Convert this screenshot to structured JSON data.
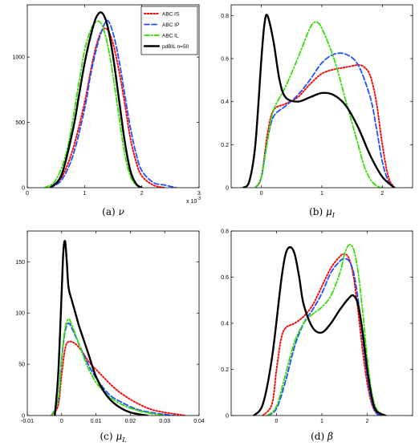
{
  "chart_data": [
    {
      "type": "line",
      "caption": "(a) ν",
      "exponent_label": "x 10",
      "exponent_power": "-3",
      "xlim": [
        0,
        3
      ],
      "ylim": [
        0,
        1400
      ],
      "x_ticks": [
        "0",
        "1",
        "2",
        "3"
      ],
      "y_ticks": [
        "0",
        "500",
        "1000"
      ],
      "legend_position": "top-right",
      "legend": [
        "ABC IS",
        "ABC IP",
        "ABC IL",
        "pdBIL n=50"
      ],
      "series": [
        {
          "name": "ABC IS",
          "color": "#ff0000",
          "style": "dotted",
          "x": [
            0.4,
            0.6,
            0.8,
            1.0,
            1.1,
            1.2,
            1.3,
            1.4,
            1.5,
            1.6,
            1.7,
            1.8,
            1.9,
            2.0,
            2.2,
            2.4
          ],
          "y": [
            0,
            80,
            300,
            650,
            880,
            1080,
            1200,
            1210,
            1100,
            900,
            650,
            380,
            200,
            90,
            20,
            0
          ]
        },
        {
          "name": "ABC IP",
          "color": "#1f4fff",
          "style": "dashed",
          "x": [
            0.4,
            0.6,
            0.8,
            1.0,
            1.1,
            1.2,
            1.3,
            1.4,
            1.5,
            1.6,
            1.7,
            1.8,
            1.9,
            2.0,
            2.2,
            2.4,
            2.6
          ],
          "y": [
            0,
            60,
            250,
            600,
            850,
            1050,
            1200,
            1280,
            1180,
            980,
            720,
            460,
            260,
            130,
            40,
            20,
            0
          ]
        },
        {
          "name": "ABC IL",
          "color": "#33dd00",
          "style": "dashdot",
          "x": [
            0.3,
            0.5,
            0.7,
            0.9,
            1.0,
            1.1,
            1.2,
            1.3,
            1.4,
            1.5,
            1.6,
            1.7,
            1.8,
            1.9,
            2.0
          ],
          "y": [
            0,
            60,
            300,
            800,
            1050,
            1200,
            1270,
            1250,
            1100,
            850,
            550,
            260,
            90,
            20,
            0
          ]
        },
        {
          "name": "pdBIL n=50",
          "color": "#000000",
          "style": "solid",
          "x": [
            0.4,
            0.6,
            0.8,
            0.9,
            1.0,
            1.1,
            1.2,
            1.3,
            1.4,
            1.5,
            1.6,
            1.7,
            1.8,
            1.9,
            2.0
          ],
          "y": [
            0,
            100,
            450,
            700,
            950,
            1150,
            1300,
            1340,
            1240,
            1000,
            680,
            360,
            130,
            30,
            0
          ]
        }
      ]
    },
    {
      "type": "line",
      "caption": "(b) μ_I",
      "xlim": [
        -0.5,
        2.5
      ],
      "ylim": [
        0,
        0.85
      ],
      "x_ticks": [
        "0",
        "1",
        "2"
      ],
      "y_ticks": [
        "0",
        "0.2",
        "0.4",
        "0.6",
        "0.8"
      ],
      "series": [
        {
          "name": "ABC IS",
          "color": "#ff0000",
          "style": "dotted",
          "x": [
            -0.1,
            0.0,
            0.1,
            0.2,
            0.4,
            0.6,
            0.8,
            1.0,
            1.2,
            1.4,
            1.6,
            1.7,
            1.8,
            1.9,
            2.0,
            2.1,
            2.2
          ],
          "y": [
            0,
            0.05,
            0.25,
            0.36,
            0.39,
            0.42,
            0.48,
            0.53,
            0.55,
            0.56,
            0.57,
            0.56,
            0.52,
            0.4,
            0.2,
            0.05,
            0
          ]
        },
        {
          "name": "ABC IP",
          "color": "#1f4fff",
          "style": "dashed",
          "x": [
            -0.1,
            0.0,
            0.1,
            0.2,
            0.4,
            0.6,
            0.8,
            1.0,
            1.2,
            1.4,
            1.6,
            1.8,
            1.9,
            2.0,
            2.1,
            2.2
          ],
          "y": [
            0,
            0.05,
            0.22,
            0.33,
            0.38,
            0.43,
            0.5,
            0.58,
            0.62,
            0.62,
            0.57,
            0.42,
            0.28,
            0.12,
            0.03,
            0
          ]
        },
        {
          "name": "ABC IL",
          "color": "#33dd00",
          "style": "dashdot",
          "x": [
            -0.1,
            0.0,
            0.1,
            0.2,
            0.4,
            0.6,
            0.8,
            0.9,
            1.0,
            1.2,
            1.4,
            1.6,
            1.7,
            1.8,
            1.9,
            2.0
          ],
          "y": [
            0,
            0.05,
            0.22,
            0.36,
            0.47,
            0.6,
            0.74,
            0.77,
            0.74,
            0.6,
            0.4,
            0.2,
            0.1,
            0.04,
            0.01,
            0
          ]
        },
        {
          "name": "pdBIL n=50",
          "color": "#000000",
          "style": "solid",
          "x": [
            -0.3,
            -0.2,
            -0.1,
            0.0,
            0.05,
            0.1,
            0.2,
            0.3,
            0.4,
            0.6,
            0.8,
            1.0,
            1.2,
            1.4,
            1.6,
            1.8,
            2.0,
            2.2
          ],
          "y": [
            0,
            0.03,
            0.2,
            0.6,
            0.76,
            0.8,
            0.68,
            0.5,
            0.42,
            0.4,
            0.42,
            0.44,
            0.43,
            0.38,
            0.28,
            0.15,
            0.05,
            0
          ]
        }
      ]
    },
    {
      "type": "line",
      "caption": "(c) μ_L",
      "xlim": [
        -0.01,
        0.04
      ],
      "ylim": [
        0,
        180
      ],
      "x_ticks": [
        "-0.01",
        "0",
        "0.01",
        "0.02",
        "0.03",
        "0.04"
      ],
      "y_ticks": [
        "0",
        "50",
        "100",
        "150"
      ],
      "series": [
        {
          "name": "ABC IS",
          "color": "#ff0000",
          "style": "dotted",
          "x": [
            -0.003,
            -0.001,
            0.0,
            0.001,
            0.002,
            0.004,
            0.006,
            0.008,
            0.01,
            0.012,
            0.015,
            0.018,
            0.022,
            0.026,
            0.03,
            0.034,
            0.036
          ],
          "y": [
            0,
            10,
            40,
            65,
            72,
            70,
            62,
            52,
            45,
            38,
            28,
            20,
            12,
            6,
            3,
            1,
            0
          ]
        },
        {
          "name": "ABC IP",
          "color": "#1f4fff",
          "style": "dashed",
          "x": [
            -0.003,
            -0.001,
            0.0,
            0.001,
            0.002,
            0.003,
            0.005,
            0.007,
            0.009,
            0.011,
            0.014,
            0.018,
            0.022,
            0.026,
            0.03,
            0.033
          ],
          "y": [
            0,
            15,
            55,
            82,
            90,
            85,
            70,
            55,
            42,
            32,
            20,
            12,
            6,
            3,
            1,
            0
          ]
        },
        {
          "name": "ABC IL",
          "color": "#33dd00",
          "style": "dashdot",
          "x": [
            -0.003,
            -0.001,
            0.0,
            0.001,
            0.002,
            0.003,
            0.005,
            0.007,
            0.009,
            0.011,
            0.014,
            0.018,
            0.022,
            0.026,
            0.03
          ],
          "y": [
            0,
            15,
            55,
            85,
            94,
            88,
            70,
            52,
            38,
            28,
            18,
            10,
            5,
            2,
            0
          ]
        },
        {
          "name": "pdBIL n=50",
          "color": "#000000",
          "style": "solid",
          "x": [
            -0.002,
            -0.001,
            0.0,
            0.0005,
            0.001,
            0.0015,
            0.002,
            0.003,
            0.004,
            0.005,
            0.006,
            0.008,
            0.01,
            0.013,
            0.016,
            0.02,
            0.025
          ],
          "y": [
            0,
            40,
            120,
            160,
            170,
            150,
            125,
            112,
            100,
            88,
            78,
            58,
            38,
            20,
            10,
            3,
            0
          ]
        }
      ]
    },
    {
      "type": "line",
      "caption": "(d) β",
      "xlim": [
        -1,
        3
      ],
      "ylim": [
        0,
        0.8
      ],
      "x_ticks": [
        "0",
        "1",
        "2"
      ],
      "y_ticks": [
        "0",
        "0.2",
        "0.4",
        "0.6",
        "0.8"
      ],
      "series": [
        {
          "name": "ABC IS",
          "color": "#ff0000",
          "style": "dotted",
          "x": [
            -0.3,
            -0.1,
            0.0,
            0.1,
            0.2,
            0.4,
            0.6,
            0.8,
            1.0,
            1.2,
            1.4,
            1.5,
            1.6,
            1.7,
            1.8,
            1.9,
            2.0,
            2.1,
            2.2,
            2.3
          ],
          "y": [
            0,
            0.05,
            0.2,
            0.33,
            0.38,
            0.4,
            0.43,
            0.48,
            0.56,
            0.64,
            0.69,
            0.7,
            0.68,
            0.6,
            0.45,
            0.28,
            0.14,
            0.05,
            0.01,
            0
          ]
        },
        {
          "name": "ABC IP",
          "color": "#1f4fff",
          "style": "dashed",
          "x": [
            -0.2,
            0.0,
            0.2,
            0.4,
            0.6,
            0.8,
            1.0,
            1.2,
            1.4,
            1.5,
            1.6,
            1.7,
            1.8,
            1.9,
            2.0,
            2.1,
            2.2,
            2.3
          ],
          "y": [
            0,
            0.03,
            0.15,
            0.3,
            0.4,
            0.46,
            0.53,
            0.62,
            0.67,
            0.68,
            0.67,
            0.62,
            0.5,
            0.33,
            0.17,
            0.06,
            0.01,
            0
          ]
        },
        {
          "name": "ABC IL",
          "color": "#33dd00",
          "style": "dashdot",
          "x": [
            -0.2,
            0.0,
            0.2,
            0.4,
            0.6,
            0.8,
            1.0,
            1.2,
            1.4,
            1.5,
            1.6,
            1.7,
            1.8,
            1.9,
            2.0,
            2.1,
            2.2,
            2.3,
            2.4
          ],
          "y": [
            0,
            0.04,
            0.18,
            0.32,
            0.4,
            0.44,
            0.47,
            0.52,
            0.62,
            0.7,
            0.74,
            0.72,
            0.62,
            0.45,
            0.25,
            0.1,
            0.03,
            0.01,
            0
          ]
        },
        {
          "name": "pdBIL n=50",
          "color": "#000000",
          "style": "solid",
          "x": [
            -0.5,
            -0.3,
            -0.1,
            0.1,
            0.2,
            0.3,
            0.4,
            0.5,
            0.6,
            0.8,
            1.0,
            1.2,
            1.4,
            1.6,
            1.7,
            1.8,
            1.9,
            2.0,
            2.1,
            2.2,
            2.4
          ],
          "y": [
            0,
            0.05,
            0.25,
            0.58,
            0.7,
            0.73,
            0.7,
            0.6,
            0.48,
            0.38,
            0.36,
            0.4,
            0.46,
            0.51,
            0.52,
            0.48,
            0.36,
            0.2,
            0.08,
            0.02,
            0
          ]
        }
      ]
    }
  ]
}
